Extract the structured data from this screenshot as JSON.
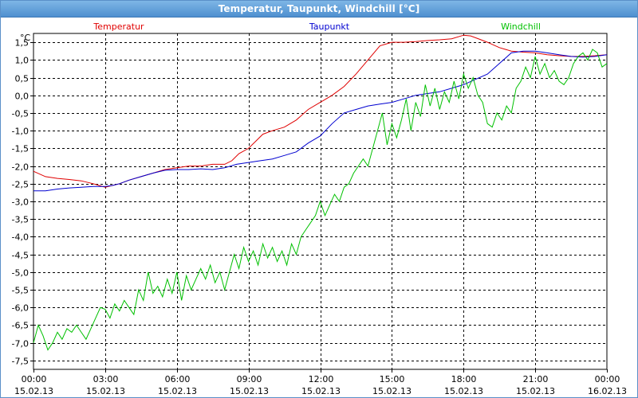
{
  "window": {
    "title": "Temperatur, Taupunkt, Windchill [°C]"
  },
  "chart_data": {
    "type": "line",
    "title": "Temperatur, Taupunkt, Windchill [°C]",
    "ylabel": "°C",
    "ylim": [
      -7.75,
      1.75
    ],
    "xlim": [
      0,
      24
    ],
    "yticks": [
      1.5,
      1.0,
      0.5,
      0.0,
      -0.5,
      -1.0,
      -1.5,
      -2.0,
      -2.5,
      -3.0,
      -3.5,
      -4.0,
      -4.5,
      -5.0,
      -5.5,
      -6.0,
      -6.5,
      -7.0,
      -7.5
    ],
    "ytick_labels": [
      "1,5",
      "1,0",
      "0,5",
      "0,0",
      "-0,5",
      "-1,0",
      "-1,5",
      "-2,0",
      "-2,5",
      "-3,0",
      "-3,5",
      "-4,0",
      "-4,5",
      "-5,0",
      "-5,5",
      "-6,0",
      "-6,5",
      "-7,0",
      "-7,5"
    ],
    "xticks": [
      {
        "time": "00:00",
        "date": "15.02.13"
      },
      {
        "time": "03:00",
        "date": "15.02.13"
      },
      {
        "time": "06:00",
        "date": "15.02.13"
      },
      {
        "time": "09:00",
        "date": "15.02.13"
      },
      {
        "time": "12:00",
        "date": "15.02.13"
      },
      {
        "time": "15:00",
        "date": "15.02.13"
      },
      {
        "time": "18:00",
        "date": "15.02.13"
      },
      {
        "time": "21:00",
        "date": "15.02.13"
      },
      {
        "time": "00:00",
        "date": "16.02.13"
      }
    ],
    "grid": true,
    "series": [
      {
        "name": "Temperatur",
        "color": "#e00000",
        "points": [
          [
            0,
            -2.15
          ],
          [
            0.5,
            -2.3
          ],
          [
            1,
            -2.35
          ],
          [
            1.5,
            -2.38
          ],
          [
            2,
            -2.42
          ],
          [
            2.5,
            -2.5
          ],
          [
            3,
            -2.6
          ],
          [
            3.3,
            -2.55
          ],
          [
            3.6,
            -2.5
          ],
          [
            4,
            -2.4
          ],
          [
            4.5,
            -2.3
          ],
          [
            5,
            -2.2
          ],
          [
            5.5,
            -2.1
          ],
          [
            6,
            -2.05
          ],
          [
            6.5,
            -2.0
          ],
          [
            7,
            -2.0
          ],
          [
            7.5,
            -1.95
          ],
          [
            8,
            -1.95
          ],
          [
            8.3,
            -1.85
          ],
          [
            8.6,
            -1.65
          ],
          [
            9,
            -1.5
          ],
          [
            9.3,
            -1.3
          ],
          [
            9.6,
            -1.1
          ],
          [
            10,
            -1.0
          ],
          [
            10.5,
            -0.9
          ],
          [
            11,
            -0.7
          ],
          [
            11.5,
            -0.4
          ],
          [
            12,
            -0.2
          ],
          [
            12.5,
            0.0
          ],
          [
            13,
            0.25
          ],
          [
            13.5,
            0.6
          ],
          [
            14,
            1.0
          ],
          [
            14.5,
            1.4
          ],
          [
            15,
            1.5
          ],
          [
            15.5,
            1.5
          ],
          [
            16,
            1.52
          ],
          [
            16.5,
            1.55
          ],
          [
            17,
            1.57
          ],
          [
            17.5,
            1.6
          ],
          [
            18,
            1.7
          ],
          [
            18.3,
            1.68
          ],
          [
            18.7,
            1.58
          ],
          [
            19,
            1.5
          ],
          [
            19.5,
            1.35
          ],
          [
            20,
            1.25
          ],
          [
            20.5,
            1.22
          ],
          [
            21,
            1.2
          ],
          [
            21.5,
            1.15
          ],
          [
            22,
            1.12
          ],
          [
            22.5,
            1.1
          ],
          [
            23,
            1.1
          ],
          [
            23.5,
            1.12
          ],
          [
            24,
            1.15
          ]
        ]
      },
      {
        "name": "Taupunkt",
        "color": "#0000d0",
        "points": [
          [
            0,
            -2.7
          ],
          [
            0.5,
            -2.7
          ],
          [
            1,
            -2.65
          ],
          [
            1.5,
            -2.62
          ],
          [
            2,
            -2.6
          ],
          [
            2.5,
            -2.58
          ],
          [
            3,
            -2.58
          ],
          [
            3.3,
            -2.55
          ],
          [
            3.6,
            -2.5
          ],
          [
            4,
            -2.4
          ],
          [
            4.5,
            -2.3
          ],
          [
            5,
            -2.2
          ],
          [
            5.5,
            -2.12
          ],
          [
            6,
            -2.1
          ],
          [
            6.5,
            -2.1
          ],
          [
            7,
            -2.08
          ],
          [
            7.5,
            -2.1
          ],
          [
            8,
            -2.05
          ],
          [
            8.5,
            -1.95
          ],
          [
            9,
            -1.9
          ],
          [
            9.5,
            -1.85
          ],
          [
            10,
            -1.8
          ],
          [
            10.5,
            -1.7
          ],
          [
            11,
            -1.6
          ],
          [
            11.5,
            -1.35
          ],
          [
            12,
            -1.15
          ],
          [
            12.5,
            -0.8
          ],
          [
            13,
            -0.5
          ],
          [
            13.5,
            -0.4
          ],
          [
            14,
            -0.3
          ],
          [
            14.5,
            -0.25
          ],
          [
            15,
            -0.2
          ],
          [
            15.5,
            -0.1
          ],
          [
            16,
            0.0
          ],
          [
            16.5,
            0.05
          ],
          [
            17,
            0.1
          ],
          [
            17.5,
            0.2
          ],
          [
            18,
            0.3
          ],
          [
            18.5,
            0.45
          ],
          [
            19,
            0.6
          ],
          [
            19.5,
            0.9
          ],
          [
            20,
            1.2
          ],
          [
            20.5,
            1.25
          ],
          [
            21,
            1.25
          ],
          [
            21.5,
            1.2
          ],
          [
            22,
            1.15
          ],
          [
            22.5,
            1.1
          ],
          [
            23,
            1.08
          ],
          [
            23.5,
            1.1
          ],
          [
            24,
            1.15
          ]
        ]
      },
      {
        "name": "Windchill",
        "color": "#00c000",
        "points": [
          [
            0,
            -7.0
          ],
          [
            0.2,
            -6.5
          ],
          [
            0.4,
            -6.8
          ],
          [
            0.6,
            -7.2
          ],
          [
            0.8,
            -7.0
          ],
          [
            1.0,
            -6.7
          ],
          [
            1.2,
            -6.9
          ],
          [
            1.4,
            -6.6
          ],
          [
            1.6,
            -6.7
          ],
          [
            1.8,
            -6.5
          ],
          [
            2.0,
            -6.7
          ],
          [
            2.2,
            -6.9
          ],
          [
            2.4,
            -6.6
          ],
          [
            2.6,
            -6.3
          ],
          [
            2.8,
            -6.0
          ],
          [
            3.0,
            -6.05
          ],
          [
            3.2,
            -6.3
          ],
          [
            3.4,
            -5.9
          ],
          [
            3.6,
            -6.1
          ],
          [
            3.8,
            -5.8
          ],
          [
            4.0,
            -6.0
          ],
          [
            4.2,
            -6.2
          ],
          [
            4.4,
            -5.5
          ],
          [
            4.6,
            -5.8
          ],
          [
            4.8,
            -5.0
          ],
          [
            5.0,
            -5.6
          ],
          [
            5.2,
            -5.4
          ],
          [
            5.4,
            -5.7
          ],
          [
            5.6,
            -5.2
          ],
          [
            5.8,
            -5.6
          ],
          [
            6.0,
            -5.0
          ],
          [
            6.2,
            -5.8
          ],
          [
            6.4,
            -5.1
          ],
          [
            6.6,
            -5.5
          ],
          [
            6.8,
            -5.2
          ],
          [
            7.0,
            -4.9
          ],
          [
            7.2,
            -5.2
          ],
          [
            7.4,
            -4.8
          ],
          [
            7.6,
            -5.3
          ],
          [
            7.8,
            -5.0
          ],
          [
            8.0,
            -5.5
          ],
          [
            8.2,
            -5.0
          ],
          [
            8.4,
            -4.5
          ],
          [
            8.6,
            -4.9
          ],
          [
            8.8,
            -4.3
          ],
          [
            9.0,
            -4.7
          ],
          [
            9.2,
            -4.4
          ],
          [
            9.4,
            -4.8
          ],
          [
            9.6,
            -4.2
          ],
          [
            9.8,
            -4.6
          ],
          [
            10.0,
            -4.3
          ],
          [
            10.2,
            -4.7
          ],
          [
            10.4,
            -4.4
          ],
          [
            10.6,
            -4.8
          ],
          [
            10.8,
            -4.2
          ],
          [
            11.0,
            -4.5
          ],
          [
            11.2,
            -4.0
          ],
          [
            11.4,
            -3.8
          ],
          [
            11.6,
            -3.6
          ],
          [
            11.8,
            -3.4
          ],
          [
            12.0,
            -3.0
          ],
          [
            12.2,
            -3.4
          ],
          [
            12.4,
            -3.1
          ],
          [
            12.6,
            -2.8
          ],
          [
            12.8,
            -3.0
          ],
          [
            13.0,
            -2.6
          ],
          [
            13.2,
            -2.5
          ],
          [
            13.4,
            -2.2
          ],
          [
            13.6,
            -2.0
          ],
          [
            13.8,
            -1.8
          ],
          [
            14.0,
            -2.0
          ],
          [
            14.2,
            -1.5
          ],
          [
            14.4,
            -1.0
          ],
          [
            14.6,
            -0.5
          ],
          [
            14.8,
            -1.4
          ],
          [
            15.0,
            -0.8
          ],
          [
            15.2,
            -1.2
          ],
          [
            15.4,
            -0.7
          ],
          [
            15.6,
            -0.1
          ],
          [
            15.8,
            -1.0
          ],
          [
            16.0,
            -0.2
          ],
          [
            16.2,
            -0.6
          ],
          [
            16.4,
            0.3
          ],
          [
            16.6,
            -0.3
          ],
          [
            16.8,
            0.2
          ],
          [
            17.0,
            -0.4
          ],
          [
            17.2,
            0.1
          ],
          [
            17.4,
            -0.2
          ],
          [
            17.6,
            0.4
          ],
          [
            17.8,
            -0.1
          ],
          [
            18.0,
            0.6
          ],
          [
            18.2,
            0.2
          ],
          [
            18.4,
            0.5
          ],
          [
            18.6,
            0.0
          ],
          [
            18.8,
            -0.2
          ],
          [
            19.0,
            -0.8
          ],
          [
            19.2,
            -0.9
          ],
          [
            19.4,
            -0.5
          ],
          [
            19.6,
            -0.7
          ],
          [
            19.8,
            -0.3
          ],
          [
            20.0,
            -0.5
          ],
          [
            20.2,
            0.2
          ],
          [
            20.4,
            0.4
          ],
          [
            20.6,
            0.8
          ],
          [
            20.8,
            0.5
          ],
          [
            21.0,
            1.1
          ],
          [
            21.2,
            0.6
          ],
          [
            21.4,
            0.9
          ],
          [
            21.6,
            0.5
          ],
          [
            21.8,
            0.7
          ],
          [
            22.0,
            0.4
          ],
          [
            22.2,
            0.3
          ],
          [
            22.4,
            0.5
          ],
          [
            22.6,
            0.9
          ],
          [
            22.8,
            1.1
          ],
          [
            23.0,
            1.2
          ],
          [
            23.2,
            1.0
          ],
          [
            23.4,
            1.3
          ],
          [
            23.6,
            1.2
          ],
          [
            23.8,
            0.8
          ],
          [
            24.0,
            0.9
          ]
        ]
      }
    ]
  }
}
